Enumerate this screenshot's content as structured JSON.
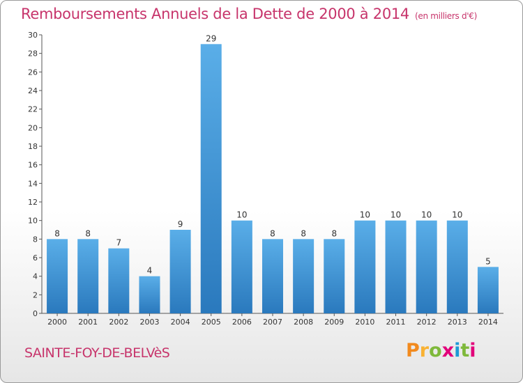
{
  "header": {
    "title": "Remboursements Annuels de la Dette de 2000 à 2014",
    "unit": "(en milliers d'€)"
  },
  "footer": {
    "commune": "SAINTE-FOY-DE-BELVèS",
    "logo": "Proxiti"
  },
  "colors": {
    "accent": "#c7346b",
    "bar_light": "#5aaee8",
    "bar_dark": "#2a79bd"
  },
  "chart_data": {
    "type": "bar",
    "title": "Remboursements Annuels de la Dette de 2000 à 2014",
    "categories": [
      "2000",
      "2001",
      "2002",
      "2003",
      "2004",
      "2005",
      "2006",
      "2007",
      "2008",
      "2009",
      "2010",
      "2011",
      "2012",
      "2013",
      "2014"
    ],
    "values": [
      8,
      8,
      7,
      4,
      9,
      29,
      10,
      8,
      8,
      8,
      10,
      10,
      10,
      10,
      5
    ],
    "ylim": [
      0,
      30
    ],
    "yticks": [
      0,
      2,
      4,
      6,
      8,
      10,
      12,
      14,
      16,
      18,
      20,
      22,
      24,
      26,
      28,
      30
    ],
    "grid": false,
    "data_labels": true
  }
}
